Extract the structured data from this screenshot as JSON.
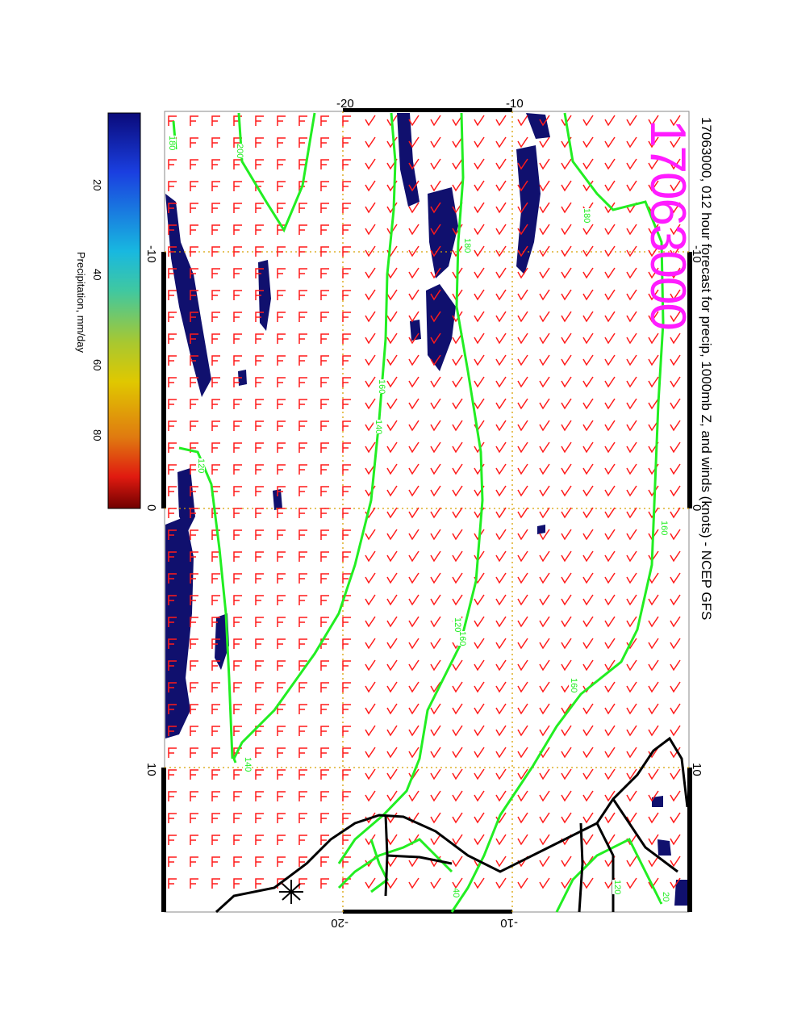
{
  "title": "17063000, 012 hour forecast for precip, 1000mb Z, and winds (knots) - NCEP GFS",
  "date_stamp": "17063000",
  "colorbar": {
    "label": "Precipitation, mm/day",
    "ticks": [
      "20",
      "40",
      "60",
      "80"
    ],
    "colors": [
      "#0a0a7a",
      "#1a3fe0",
      "#18b8e0",
      "#40c8a0",
      "#a8c830",
      "#e0c800",
      "#e07a10",
      "#e01a10",
      "#700000"
    ]
  },
  "axes": {
    "lon_top": [
      "-20",
      "-10"
    ],
    "lon_bottom": [
      "-20",
      "-10"
    ],
    "lat_left": [
      "-10",
      "0",
      "10"
    ],
    "lat_right": [
      "-10",
      "0",
      "10"
    ]
  },
  "contour_labels": [
    "180",
    "200",
    "160",
    "140",
    "120",
    "180",
    "160",
    "140",
    "120",
    "160",
    "180",
    "160",
    "120",
    "20",
    "40"
  ],
  "colors": {
    "contour": "#22ee22",
    "wind_barb": "#ff1a1a",
    "precip": "#10106e",
    "coast": "#000000",
    "grid": "#d8a000",
    "stamp": "#ff1cff"
  },
  "layers": [
    "precipitation",
    "1000mb geopotential height contours",
    "wind barbs",
    "coastlines",
    "lat/lon grid"
  ]
}
